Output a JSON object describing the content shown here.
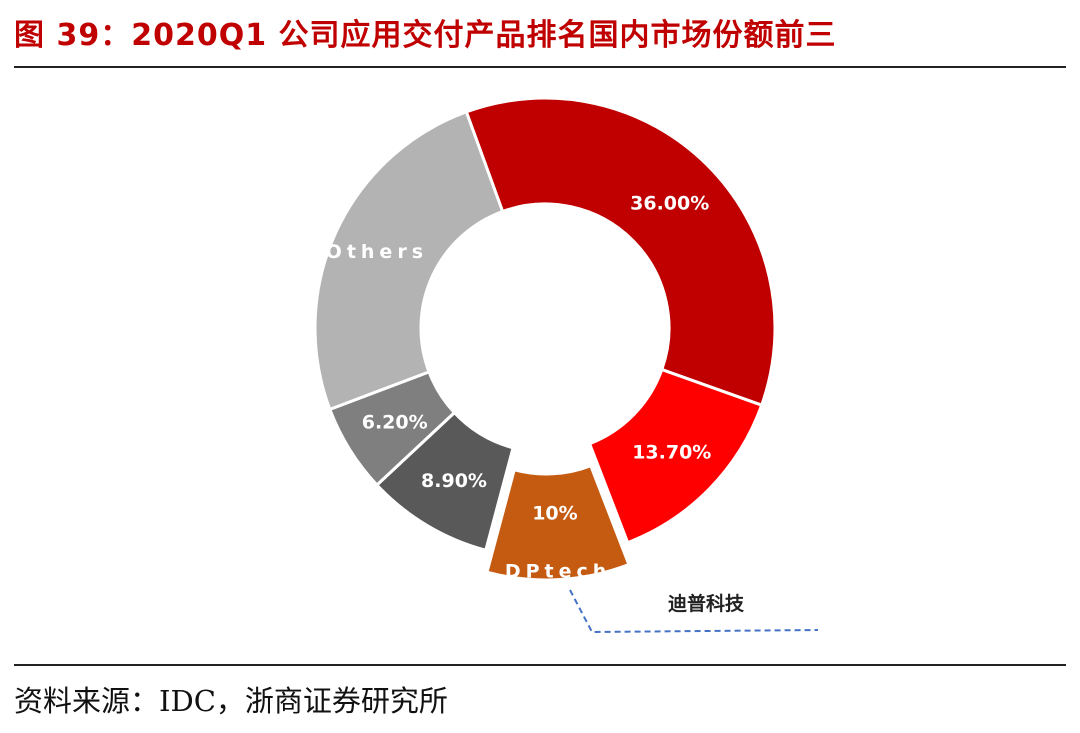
{
  "title": "图 39：2020Q1 公司应用交付产品排名国内市场份额前三",
  "source": "资料来源：IDC，浙商证券研究所",
  "chart_data": {
    "type": "pie",
    "subtype": "donut",
    "title": "2020Q1 公司应用交付产品排名国内市场份额前三",
    "series": [
      {
        "name": "",
        "value": 36.0,
        "label": "36.00%",
        "color": "#c00000"
      },
      {
        "name": "",
        "value": 13.7,
        "label": "13.70%",
        "color": "#ff0000"
      },
      {
        "name": "DPtech",
        "value": 10.0,
        "label": "10%",
        "color": "#c55a11"
      },
      {
        "name": "",
        "value": 8.9,
        "label": "8.90%",
        "color": "#595959"
      },
      {
        "name": "",
        "value": 6.2,
        "label": "6.20%",
        "color": "#7f7f7f"
      },
      {
        "name": "Others",
        "value": 25.2,
        "label": "",
        "color": "#b3b3b3"
      }
    ],
    "annotation": "迪普科技"
  }
}
